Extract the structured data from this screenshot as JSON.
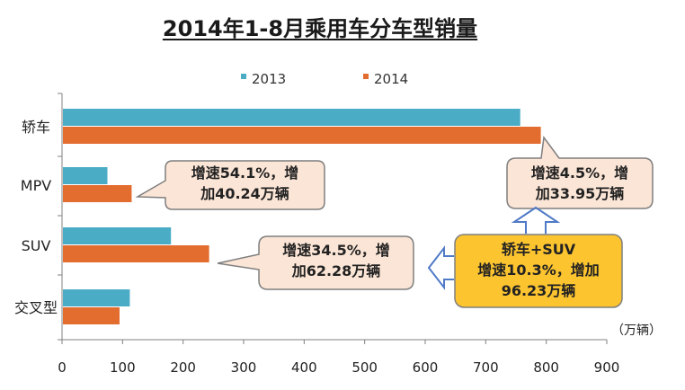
{
  "chart_data": {
    "type": "bar",
    "orientation": "horizontal",
    "title": "2014年1-8月乘用车分车型销量",
    "categories": [
      "轿车",
      "MPV",
      "SUV",
      "交叉型"
    ],
    "series": [
      {
        "name": "2013",
        "color": "#4bacc6",
        "values": [
          757,
          75,
          180,
          112
        ]
      },
      {
        "name": "2014",
        "color": "#e36c2f",
        "values": [
          791,
          115,
          243,
          95
        ]
      }
    ],
    "xlim": [
      0,
      900
    ],
    "xticks": [
      0,
      100,
      200,
      300,
      400,
      500,
      600,
      700,
      800,
      900
    ],
    "unit_label": "（万辆）",
    "legend_position": "top",
    "grid": false,
    "annotations": [
      {
        "id": "mpv",
        "lines": [
          "增速54.1%，增",
          "加40.24万辆"
        ]
      },
      {
        "id": "suv",
        "lines": [
          "增速34.5%，增",
          "加62.28万辆"
        ]
      },
      {
        "id": "sedan",
        "lines": [
          "增速4.5%，增",
          "加33.95万辆"
        ]
      },
      {
        "id": "sedan-suv",
        "lines": [
          "轿车+SUV",
          "增速10.3%，增加",
          "96.23万辆"
        ]
      }
    ]
  },
  "colors": {
    "callout_fill": "#fbe5d6",
    "highlight_fill": "#fcc42f",
    "callout_border": "#7f7f7f",
    "arrow_stroke": "#4f7ac7"
  }
}
